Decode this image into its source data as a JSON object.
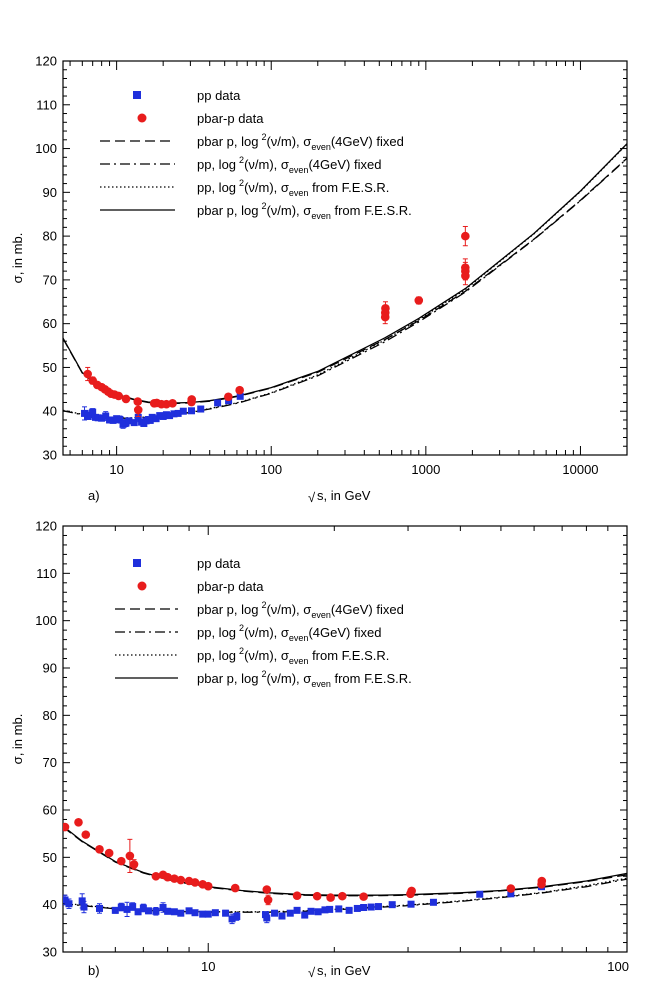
{
  "chart_data": [
    {
      "type": "scatter",
      "panel": "a)",
      "xscale": "log",
      "xlim": [
        4.5,
        20000
      ],
      "ylim": [
        30,
        120
      ],
      "xticks": [
        10,
        100,
        1000,
        10000
      ],
      "xtick_labels": [
        "10",
        "100",
        "1000",
        "10000"
      ],
      "yticks": [
        30,
        40,
        50,
        60,
        70,
        80,
        90,
        100,
        110,
        120
      ],
      "ytick_labels": [
        "30",
        "40",
        "50",
        "60",
        "70",
        "80",
        "90",
        "100",
        "110",
        "120"
      ],
      "xlabel_prefix": "√",
      "xlabel": "s, in GeV",
      "ylabel": "σ, in mb.",
      "legend": [
        {
          "key": "pp_data",
          "label": "pp        data"
        },
        {
          "key": "pbarp_data",
          "label": "pbar-p  data"
        },
        {
          "key": "fit_pbarp_fixed",
          "pre": "pbar p,  log",
          "sup": "2",
          "mid": "(ν/m),  σ",
          "sub": "even",
          "post": "(4GeV) fixed"
        },
        {
          "key": "fit_pp_fixed",
          "pre": "pp,        log",
          "sup": "2",
          "mid": "(ν/m),  σ",
          "sub": "even",
          "post": "(4GeV) fixed"
        },
        {
          "key": "fit_pp_fesr",
          "pre": "pp,        log",
          "sup": "2",
          "mid": "(ν/m),  σ",
          "sub": "even",
          "post": " from F.E.S.R."
        },
        {
          "key": "fit_pbarp_fesr",
          "pre": "pbar p,  log",
          "sup": "2",
          "mid": "(ν/m),  σ",
          "sub": "even",
          "post": " from F.E.S.R."
        }
      ],
      "series": [
        {
          "name": "pp data",
          "color": "#1f2fdc",
          "marker": "square",
          "x": [
            6.2,
            6.5,
            6.8,
            7.0,
            7.3,
            7.6,
            8.0,
            8.5,
            9.0,
            9.5,
            10.0,
            10.5,
            11.0,
            11.5,
            12.0,
            13.0,
            13.8,
            14.5,
            15.0,
            15.5,
            16.0,
            16.5,
            17.0,
            18.0,
            19.0,
            20.0,
            21.0,
            22.0,
            23.5,
            25.0,
            27.0,
            30.5,
            35.0,
            45.0,
            53.0,
            63.0
          ],
          "y": [
            39.5,
            38.8,
            39.2,
            39.8,
            38.6,
            38.5,
            38.4,
            38.9,
            38.0,
            37.9,
            38.3,
            38.1,
            37.0,
            37.3,
            37.8,
            37.4,
            38.6,
            37.5,
            37.2,
            37.8,
            38.1,
            37.9,
            38.6,
            38.3,
            39.0,
            38.8,
            39.2,
            39.0,
            39.4,
            39.5,
            40.0,
            40.1,
            40.5,
            41.9,
            42.4,
            43.4
          ],
          "err": [
            1.5,
            0.6,
            1.0,
            0.8,
            0.5,
            0.6,
            0.5,
            1.0,
            0.6,
            0.6,
            0.5,
            0.8,
            0.9,
            0.8,
            0.6,
            0.6,
            1.0,
            0.5,
            0.5,
            0.5,
            0.6,
            0.5,
            0.5,
            0.4,
            0.4,
            0.4,
            0.4,
            0.4,
            0.3,
            0.3,
            0.3,
            0.3,
            0.3,
            0.4,
            0.3,
            0.5
          ]
        },
        {
          "name": "pbar-p data",
          "color": "#e81c1c",
          "marker": "circle",
          "x": [
            6.5,
            7.0,
            7.5,
            8.0,
            8.4,
            8.8,
            9.2,
            9.7,
            10.3,
            11.5,
            13.7,
            13.8,
            17.5,
            18.2,
            19.5,
            21.0,
            23.0,
            30.5,
            30.6,
            52.8,
            62.5,
            546,
            546.5,
            548,
            900,
            1800,
            1800.5,
            1801,
            1802
          ],
          "y": [
            48.5,
            47.0,
            46.0,
            45.5,
            45.0,
            44.5,
            44.0,
            43.8,
            43.5,
            42.8,
            42.2,
            40.3,
            41.8,
            41.9,
            41.6,
            41.6,
            41.8,
            42.1,
            42.7,
            43.3,
            44.8,
            61.5,
            62.5,
            63.5,
            65.3,
            72.8,
            80.0,
            72.0,
            70.9
          ],
          "err": [
            1.5,
            0.8,
            0.6,
            0.5,
            0.5,
            0.5,
            0.5,
            0.5,
            0.5,
            0.4,
            0.4,
            1.5,
            0.5,
            0.5,
            0.4,
            0.3,
            0.3,
            0.3,
            0.3,
            0.5,
            0.6,
            1.5,
            1.5,
            1.5,
            0.8,
            2.0,
            2.2,
            2.0,
            2.0
          ]
        },
        {
          "name": "pbar p fixed fit",
          "style": "dashed",
          "x": [
            4.5,
            6,
            8,
            10,
            13,
            16,
            20,
            25,
            30,
            40,
            53,
            63,
            100,
            200,
            546,
            900,
            1800,
            5000,
            10000,
            20000
          ],
          "y": [
            56.6,
            48.7,
            45.3,
            43.8,
            42.6,
            42.0,
            41.8,
            41.8,
            41.9,
            42.3,
            43.0,
            43.5,
            45.3,
            48.9,
            56.4,
            60.7,
            67.4,
            79.3,
            88.2,
            97.8
          ]
        },
        {
          "name": "pp fixed fit",
          "style": "dashdot",
          "x": [
            4.5,
            6,
            8,
            10,
            13,
            16,
            20,
            25,
            30,
            40,
            53,
            63,
            100,
            200,
            546,
            900,
            1800,
            5000,
            10000,
            20000
          ],
          "y": [
            40.1,
            39.2,
            38.6,
            38.4,
            38.4,
            38.6,
            38.9,
            39.3,
            39.7,
            40.5,
            41.4,
            42.0,
            44.1,
            48.1,
            55.9,
            60.4,
            67.2,
            79.2,
            88.1,
            97.7
          ]
        },
        {
          "name": "pp F.E.S.R. fit",
          "style": "dotted",
          "x": [
            4.5,
            6,
            8,
            10,
            13,
            16,
            20,
            25,
            30,
            40,
            53,
            63,
            100,
            200,
            546,
            900,
            1800,
            5000,
            10000,
            20000
          ],
          "y": [
            40.2,
            39.3,
            38.7,
            38.5,
            38.5,
            38.7,
            39.0,
            39.4,
            39.8,
            40.6,
            41.5,
            42.1,
            44.2,
            48.3,
            56.3,
            60.9,
            67.8,
            80.5,
            90.2,
            101.0
          ]
        },
        {
          "name": "pbar p F.E.S.R. fit",
          "style": "solid",
          "x": [
            4.5,
            6,
            8,
            10,
            13,
            16,
            20,
            25,
            30,
            40,
            53,
            63,
            100,
            200,
            546,
            900,
            1800,
            5000,
            10000,
            20000
          ],
          "y": [
            56.7,
            48.8,
            45.4,
            43.9,
            42.7,
            42.1,
            41.9,
            41.9,
            42.0,
            42.4,
            43.1,
            43.6,
            45.4,
            49.1,
            56.8,
            61.2,
            68.0,
            80.6,
            90.3,
            101.1
          ]
        }
      ]
    },
    {
      "type": "scatter",
      "panel": "b)",
      "xscale": "log",
      "xlim": [
        4.5,
        100
      ],
      "ylim": [
        30,
        120
      ],
      "xticks": [
        10,
        100
      ],
      "xtick_labels": [
        "10",
        "100"
      ],
      "yticks": [
        30,
        40,
        50,
        60,
        70,
        80,
        90,
        100,
        110,
        120
      ],
      "ytick_labels": [
        "30",
        "40",
        "50",
        "60",
        "70",
        "80",
        "90",
        "100",
        "110",
        "120"
      ],
      "xlabel_prefix": "√",
      "xlabel": "s, in GeV",
      "ylabel": "σ, in mb.",
      "legend": [
        {
          "key": "pp_data",
          "label": "pp        data"
        },
        {
          "key": "pbarp_data",
          "label": "pbar-p  data"
        },
        {
          "key": "fit_pbarp_fixed",
          "pre": "pbar p,  log",
          "sup": "2",
          "mid": "(ν/m),  σ",
          "sub": "even",
          "post": "(4GeV) fixed"
        },
        {
          "key": "fit_pp_fixed",
          "pre": "pp,        log",
          "sup": "2",
          "mid": "(ν/m),  σ",
          "sub": "even",
          "post": "(4GeV) fixed"
        },
        {
          "key": "fit_pp_fesr",
          "pre": "pp,        log",
          "sup": "2",
          "mid": "(ν/m),  σ",
          "sub": "even",
          "post": " from F.E.S.R."
        },
        {
          "key": "fit_pbarp_fesr",
          "pre": "pbar p,  log",
          "sup": "2",
          "mid": "(ν/m),  σ",
          "sub": "even",
          "post": " from F.E.S.R."
        }
      ],
      "series": [
        {
          "name": "pp data",
          "color": "#1f2fdc",
          "marker": "square",
          "x": [
            4.55,
            4.65,
            5.0,
            5.05,
            5.5,
            6.0,
            6.2,
            6.4,
            6.6,
            6.8,
            7.0,
            7.2,
            7.5,
            7.8,
            8.0,
            8.3,
            8.6,
            9.0,
            9.3,
            9.7,
            10.0,
            10.4,
            11.0,
            11.4,
            11.7,
            13.7,
            13.8,
            14.4,
            15.0,
            15.7,
            16.3,
            17.0,
            17.6,
            18.3,
            19.0,
            19.5,
            20.5,
            21.7,
            22.7,
            23.5,
            24.5,
            25.5,
            27.5,
            30.5,
            34.5,
            44.5,
            52.8,
            62.5
          ],
          "y": [
            41.0,
            40.2,
            40.8,
            39.5,
            39.2,
            38.8,
            39.5,
            39.0,
            39.6,
            38.5,
            39.3,
            38.7,
            38.6,
            39.4,
            38.6,
            38.5,
            38.2,
            38.7,
            38.3,
            38.0,
            38.0,
            38.3,
            38.2,
            37.0,
            37.5,
            37.9,
            37.2,
            38.2,
            37.6,
            38.2,
            38.8,
            37.8,
            38.6,
            38.5,
            38.9,
            39.0,
            39.1,
            38.8,
            39.2,
            39.4,
            39.5,
            39.6,
            40.0,
            40.1,
            40.5,
            42.2,
            42.3,
            43.8
          ],
          "err": [
            1.0,
            1.0,
            1.5,
            1.2,
            1.0,
            0.6,
            0.8,
            1.5,
            0.8,
            0.6,
            0.8,
            0.6,
            0.8,
            1.0,
            0.6,
            0.5,
            0.5,
            0.5,
            0.5,
            0.5,
            0.5,
            0.5,
            0.6,
            1.0,
            0.8,
            0.5,
            1.0,
            0.5,
            0.5,
            0.5,
            0.5,
            0.5,
            0.5,
            0.5,
            0.5,
            0.4,
            0.4,
            0.4,
            0.4,
            0.3,
            0.3,
            0.3,
            0.3,
            0.3,
            0.3,
            0.3,
            0.3,
            0.4
          ]
        },
        {
          "name": "pbar-p data",
          "color": "#e81c1c",
          "marker": "circle",
          "x": [
            4.55,
            4.9,
            5.1,
            5.5,
            5.8,
            6.2,
            6.5,
            6.65,
            7.5,
            7.8,
            8.0,
            8.3,
            8.6,
            9.0,
            9.3,
            9.7,
            10.0,
            11.6,
            13.8,
            13.9,
            16.3,
            18.2,
            19.6,
            20.9,
            23.5,
            30.4,
            30.6,
            52.8,
            62.5,
            62.6
          ],
          "y": [
            56.4,
            57.4,
            54.8,
            51.7,
            50.9,
            49.2,
            50.3,
            48.5,
            46.0,
            46.3,
            45.8,
            45.5,
            45.2,
            45.0,
            44.7,
            44.3,
            43.9,
            43.5,
            43.2,
            41.0,
            41.9,
            41.8,
            41.5,
            41.8,
            41.7,
            42.3,
            42.9,
            43.4,
            44.3,
            45.0
          ],
          "err": [
            0.5,
            0.5,
            0.5,
            0.5,
            0.5,
            0.5,
            3.5,
            1.0,
            0.5,
            0.5,
            0.5,
            0.5,
            0.5,
            0.5,
            0.5,
            0.5,
            0.5,
            0.5,
            0.4,
            1.0,
            0.4,
            0.4,
            0.4,
            0.4,
            0.3,
            0.3,
            0.3,
            0.4,
            0.4,
            0.4
          ]
        },
        {
          "name": "pbar p fixed fit",
          "style": "dashed",
          "x": [
            4.5,
            5,
            6,
            7,
            8,
            9,
            10,
            12,
            14,
            17,
            20,
            25,
            30,
            40,
            50,
            63,
            80,
            100
          ],
          "y": [
            56.4,
            53.3,
            49.0,
            46.7,
            45.3,
            44.4,
            43.7,
            42.9,
            42.4,
            42.0,
            41.9,
            41.9,
            42.0,
            42.4,
            42.9,
            43.7,
            44.9,
            46.3
          ]
        },
        {
          "name": "pp fixed fit",
          "style": "dashdot",
          "x": [
            4.5,
            5,
            6,
            7,
            8,
            9,
            10,
            12,
            14,
            17,
            20,
            25,
            30,
            40,
            50,
            63,
            80,
            100
          ],
          "y": [
            40.2,
            39.8,
            39.1,
            38.8,
            38.6,
            38.5,
            38.4,
            38.4,
            38.4,
            38.6,
            38.9,
            39.4,
            39.8,
            40.7,
            41.5,
            42.5,
            43.8,
            45.4
          ]
        },
        {
          "name": "pp F.E.S.R. fit",
          "style": "dotted",
          "x": [
            4.5,
            5,
            6,
            7,
            8,
            9,
            10,
            12,
            14,
            17,
            20,
            25,
            30,
            40,
            50,
            63,
            80,
            100
          ],
          "y": [
            40.3,
            39.9,
            39.2,
            38.9,
            38.7,
            38.6,
            38.5,
            38.5,
            38.5,
            38.7,
            39.0,
            39.5,
            39.9,
            40.8,
            41.6,
            42.6,
            44.0,
            45.6
          ]
        },
        {
          "name": "pbar p F.E.S.R. fit",
          "style": "solid",
          "x": [
            4.5,
            5,
            6,
            7,
            8,
            9,
            10,
            12,
            14,
            17,
            20,
            25,
            30,
            40,
            50,
            63,
            80,
            100
          ],
          "y": [
            56.6,
            53.4,
            49.1,
            46.8,
            45.4,
            44.5,
            43.8,
            43.0,
            42.5,
            42.1,
            42.0,
            42.0,
            42.1,
            42.5,
            43.0,
            43.8,
            45.0,
            46.6
          ]
        }
      ]
    }
  ]
}
